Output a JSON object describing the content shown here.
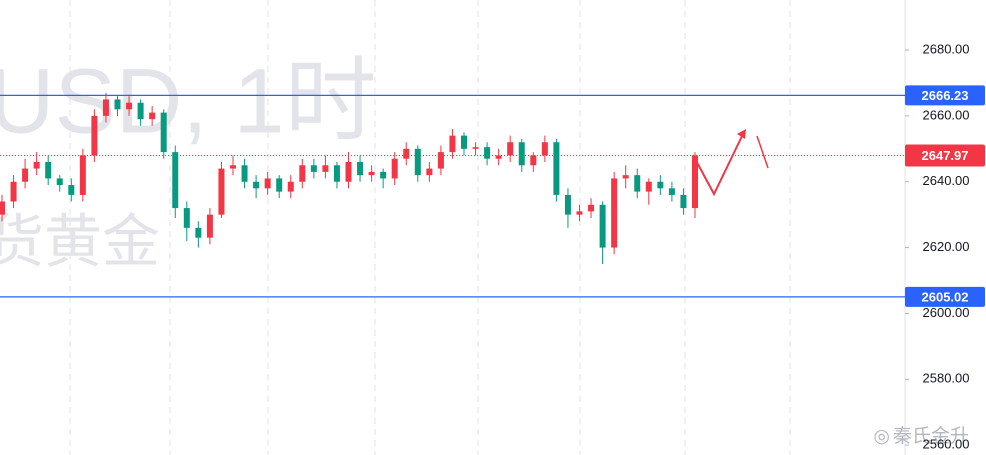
{
  "chart_data": {
    "type": "candlestick",
    "watermark": [
      "USD, 1时",
      "货黄金"
    ],
    "credit": "秦氏金升",
    "up_color": "#f23645",
    "down_color": "#089981",
    "open": [
      2630,
      2634,
      2640,
      2644,
      2646,
      2641,
      2639,
      2636,
      2648,
      2660,
      2665,
      2662,
      2664,
      2659,
      2661,
      2649,
      2632,
      2626,
      2623,
      2630,
      2644,
      2645,
      2640,
      2638,
      2641,
      2637,
      2640,
      2645,
      2643,
      2645,
      2640,
      2646,
      2642,
      2643,
      2641,
      2647,
      2650,
      2642,
      2644,
      2649,
      2654,
      2650,
      2650.5,
      2647,
      2648,
      2652,
      2645,
      2648,
      2652,
      2636,
      2630,
      2631,
      2633,
      2620,
      2641,
      2642,
      2637,
      2640,
      2638,
      2636,
      2632
    ],
    "high": [
      2636,
      2642,
      2647,
      2649,
      2648,
      2642,
      2641,
      2650,
      2662,
      2667,
      2666,
      2666,
      2665,
      2663,
      2662,
      2651,
      2634,
      2628,
      2632,
      2646,
      2648,
      2647,
      2642,
      2643,
      2642,
      2642,
      2647,
      2647,
      2648,
      2646,
      2649,
      2648,
      2645,
      2644,
      2649,
      2652,
      2651,
      2646,
      2651,
      2656,
      2655,
      2652,
      2652,
      2650,
      2654,
      2653,
      2649,
      2654,
      2653,
      2638,
      2633,
      2635,
      2634,
      2643,
      2645,
      2644,
      2641,
      2642,
      2640,
      2638,
      2649
    ],
    "low": [
      2628,
      2632,
      2638,
      2642,
      2639,
      2637,
      2634,
      2634,
      2646,
      2658,
      2660,
      2660,
      2657,
      2657,
      2647,
      2629,
      2622,
      2620,
      2621,
      2629,
      2642,
      2638,
      2635,
      2636,
      2635,
      2635,
      2638,
      2641,
      2641,
      2638,
      2638,
      2640,
      2640,
      2638,
      2639,
      2645,
      2640,
      2640,
      2642,
      2647,
      2648,
      2648,
      2645,
      2645,
      2646,
      2643,
      2643,
      2646,
      2634,
      2626,
      2628,
      2629,
      2615,
      2618,
      2638,
      2635,
      2633,
      2636,
      2634,
      2630,
      2629
    ],
    "close": [
      2634,
      2640,
      2644,
      2646,
      2641,
      2639,
      2636,
      2648,
      2660,
      2665,
      2662,
      2664,
      2659,
      2661,
      2649,
      2632,
      2626,
      2623,
      2630,
      2644,
      2645,
      2640,
      2638,
      2641,
      2637,
      2640,
      2645,
      2643,
      2645,
      2640,
      2646,
      2642,
      2643,
      2641,
      2647,
      2650,
      2642,
      2644,
      2649,
      2654,
      2650,
      2650.5,
      2647,
      2648,
      2652,
      2645,
      2648,
      2652,
      2636,
      2630,
      2631,
      2633,
      2620,
      2641,
      2642,
      2637,
      2640,
      2638,
      2636,
      2632,
      2647.97
    ],
    "levels": [
      {
        "value": 2666.23,
        "color": "#2962ff"
      },
      {
        "value": 2605.02,
        "color": "#2962ff"
      }
    ],
    "last_price": {
      "value": 2647.97,
      "color": "#f23645"
    },
    "ylim": [
      2557,
      2695.2
    ],
    "yticks": [
      {
        "value": 2680,
        "label": "2680.00"
      },
      {
        "value": 2660,
        "label": "2660.00"
      },
      {
        "value": 2640,
        "label": "2640.00"
      },
      {
        "value": 2620,
        "label": "2620.00"
      },
      {
        "value": 2600,
        "label": "2600.00"
      },
      {
        "value": 2580,
        "label": "2580.00"
      },
      {
        "value": 2560,
        "label": "2560.00"
      }
    ]
  }
}
